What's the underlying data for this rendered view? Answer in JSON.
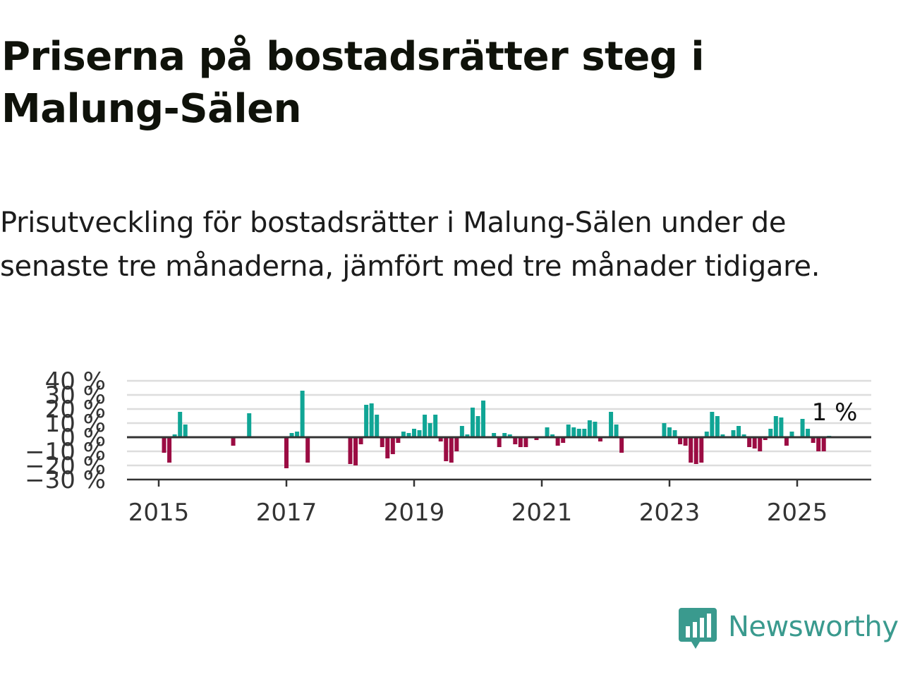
{
  "title": "Priserna på bostadsrätter steg i Malung-Sälen",
  "subtitle": "Prisutveckling för bostadsrätter i Malung-Sälen under de senaste tre månaderna, jämfört med tre månader tidigare.",
  "logo": {
    "text": "Newsworthy",
    "icon": "newsworthy-bar-chart-icon"
  },
  "colors": {
    "positive": "#10a595",
    "negative": "#9b0c43",
    "axis": "#333333",
    "grid": "#dddddd",
    "brand": "#3a9a8e"
  },
  "chart_data": {
    "type": "bar",
    "title": "",
    "xlabel": "",
    "ylabel": "",
    "ylim": [
      -30,
      40
    ],
    "y_ticks": [
      40,
      30,
      20,
      10,
      0,
      -10,
      -20,
      -30
    ],
    "y_tick_labels": [
      "40 %",
      "30 %",
      "20 %",
      "10 %",
      "0 %",
      "−10 %",
      "−20 %",
      "−30 %"
    ],
    "x_ticks": [
      2015,
      2017,
      2019,
      2021,
      2023,
      2025
    ],
    "x_tick_labels": [
      "2015",
      "2017",
      "2019",
      "2021",
      "2023",
      "2025"
    ],
    "grid": true,
    "last_value_label": "1 %",
    "series": [
      {
        "x": [
          "2015-01",
          "2015-02",
          "2015-03",
          "2015-04",
          "2015-05",
          "2015-06",
          "2015-07",
          "2015-08",
          "2015-09",
          "2015-10",
          "2015-11",
          "2015-12",
          "2016-01",
          "2016-02",
          "2016-03",
          "2016-04",
          "2016-05",
          "2016-06",
          "2016-07",
          "2016-08",
          "2016-09",
          "2016-10",
          "2016-11",
          "2016-12",
          "2017-01",
          "2017-02",
          "2017-03",
          "2017-04",
          "2017-05",
          "2017-06",
          "2017-07",
          "2017-08",
          "2017-09",
          "2017-10",
          "2017-11",
          "2017-12",
          "2018-01",
          "2018-02",
          "2018-03",
          "2018-04",
          "2018-05",
          "2018-06",
          "2018-07",
          "2018-08",
          "2018-09",
          "2018-10",
          "2018-11",
          "2018-12",
          "2019-01",
          "2019-02",
          "2019-03",
          "2019-04",
          "2019-05",
          "2019-06",
          "2019-07",
          "2019-08",
          "2019-09",
          "2019-10",
          "2019-11",
          "2019-12",
          "2020-01",
          "2020-02",
          "2020-03",
          "2020-04",
          "2020-05",
          "2020-06",
          "2020-07",
          "2020-08",
          "2020-09",
          "2020-10",
          "2020-11",
          "2020-12",
          "2021-01",
          "2021-02",
          "2021-03",
          "2021-04",
          "2021-05",
          "2021-06",
          "2021-07",
          "2021-08",
          "2021-09",
          "2021-10",
          "2021-11",
          "2021-12",
          "2022-01",
          "2022-02",
          "2022-03",
          "2022-04",
          "2022-05",
          "2022-06",
          "2022-07",
          "2022-08",
          "2022-09",
          "2022-10",
          "2022-11",
          "2022-12",
          "2023-01",
          "2023-02",
          "2023-03",
          "2023-04",
          "2023-05",
          "2023-06",
          "2023-07",
          "2023-08",
          "2023-09",
          "2023-10",
          "2023-11",
          "2023-12",
          "2024-01",
          "2024-02",
          "2024-03",
          "2024-04",
          "2024-05",
          "2024-06",
          "2024-07",
          "2024-08",
          "2024-09",
          "2024-10",
          "2024-11",
          "2024-12",
          "2025-01",
          "2025-02",
          "2025-03",
          "2025-04",
          "2025-05",
          "2025-06",
          "2025-07"
        ],
        "values": [
          null,
          -11,
          -18,
          2,
          18,
          9,
          null,
          null,
          null,
          null,
          null,
          null,
          null,
          null,
          -6,
          null,
          null,
          17,
          null,
          null,
          null,
          null,
          null,
          null,
          -22,
          3,
          4,
          33,
          -18,
          null,
          null,
          null,
          null,
          null,
          null,
          null,
          -19,
          -20,
          -5,
          23,
          24,
          16,
          -7,
          -15,
          -12,
          -4,
          4,
          3,
          6,
          5,
          16,
          10,
          16,
          -3,
          -17,
          -18,
          -10,
          8,
          2,
          21,
          15,
          26,
          null,
          3,
          -7,
          3,
          2,
          -5,
          -7,
          -7,
          null,
          -2,
          null,
          7,
          2,
          -6,
          -4,
          9,
          7,
          6,
          6,
          12,
          11,
          -3,
          null,
          18,
          9,
          -11,
          null,
          null,
          null,
          null,
          null,
          null,
          null,
          10,
          7,
          5,
          -5,
          -6,
          -18,
          -19,
          -18,
          4,
          18,
          15,
          2,
          null,
          5,
          8,
          2,
          -7,
          -8,
          -10,
          -2,
          6,
          15,
          14,
          -6,
          4,
          null,
          13,
          6,
          -4,
          -10,
          -10,
          1
        ]
      }
    ]
  }
}
